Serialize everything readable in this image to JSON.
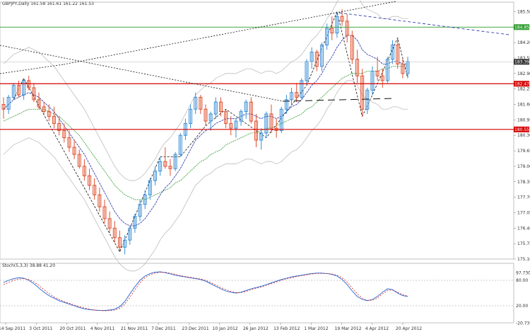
{
  "header": {
    "title": "GBPJPY,Daily 161.58 161.61 161.22 161.53",
    "indicator_title": "Stoch(5,3,3) 38.88 41.20"
  },
  "chart_data": [
    {
      "type": "candlestick",
      "title": "GBPJPY,Daily",
      "x_labels": [
        "14 Sep 2011",
        "3 Oct 2011",
        "20 Oct 2011",
        "4 Nov 2011",
        "21 Nov 2011",
        "7 Dec 2011",
        "23 Dec 2011",
        "10 Jan 2012",
        "26 Jan 2012",
        "13 Feb 2012",
        "1 Mar 2012",
        "19 Mar 2012",
        "4 Apr 2012",
        "20 Apr 2012"
      ],
      "price_ticks": [
        185.5,
        184.85,
        184.2,
        183.55,
        182.9,
        182.25,
        181.6,
        180.95,
        180.3,
        179.65,
        179.0,
        178.35,
        177.7,
        177.05,
        176.4,
        175.75,
        175.1
      ],
      "ylim": [
        175.1,
        185.9
      ],
      "price_tags": [
        {
          "label": "184.85",
          "value": 184.85,
          "color": "#2e9b2e"
        },
        {
          "label": "183.39",
          "value": 183.39,
          "color": "#333333"
        },
        {
          "label": "182.47",
          "value": 182.47,
          "color": "#d40000"
        },
        {
          "label": "180.55",
          "value": 180.55,
          "color": "#d40000"
        }
      ],
      "candles": [
        [
          181.6,
          181.9,
          181.0,
          181.4
        ],
        [
          181.4,
          182.0,
          181.2,
          181.9
        ],
        [
          181.9,
          182.5,
          181.8,
          182.4
        ],
        [
          182.4,
          182.6,
          181.9,
          182.0
        ],
        [
          182.0,
          182.7,
          181.8,
          182.6
        ],
        [
          182.6,
          182.8,
          182.2,
          182.3
        ],
        [
          182.3,
          182.5,
          181.7,
          181.8
        ],
        [
          181.8,
          182.1,
          181.4,
          181.5
        ],
        [
          181.5,
          181.7,
          181.2,
          181.3
        ],
        [
          181.3,
          181.6,
          180.9,
          181.1
        ],
        [
          181.1,
          181.5,
          180.6,
          180.8
        ],
        [
          180.8,
          181.1,
          180.3,
          180.5
        ],
        [
          180.5,
          180.8,
          180.0,
          180.2
        ],
        [
          180.2,
          180.5,
          179.6,
          179.8
        ],
        [
          179.8,
          180.1,
          179.3,
          179.5
        ],
        [
          179.5,
          179.7,
          178.9,
          179.0
        ],
        [
          179.0,
          179.3,
          178.4,
          178.6
        ],
        [
          178.6,
          178.9,
          178.0,
          178.2
        ],
        [
          178.2,
          178.5,
          177.6,
          177.8
        ],
        [
          177.8,
          178.1,
          177.1,
          177.3
        ],
        [
          177.3,
          177.6,
          176.6,
          176.8
        ],
        [
          176.8,
          177.1,
          176.2,
          176.4
        ],
        [
          176.4,
          176.7,
          175.8,
          176.0
        ],
        [
          176.0,
          176.3,
          175.4,
          175.6
        ],
        [
          175.6,
          176.1,
          175.3,
          175.9
        ],
        [
          175.9,
          176.5,
          175.7,
          176.4
        ],
        [
          176.4,
          177.0,
          176.2,
          176.9
        ],
        [
          176.9,
          177.6,
          176.7,
          177.4
        ],
        [
          177.4,
          178.0,
          177.2,
          177.8
        ],
        [
          177.8,
          178.5,
          177.6,
          178.4
        ],
        [
          178.4,
          179.0,
          178.2,
          178.8
        ],
        [
          178.8,
          179.4,
          178.6,
          179.2
        ],
        [
          179.2,
          179.8,
          178.9,
          179.0
        ],
        [
          179.0,
          179.3,
          178.6,
          178.9
        ],
        [
          178.9,
          179.6,
          178.8,
          179.5
        ],
        [
          179.5,
          180.4,
          179.4,
          180.3
        ],
        [
          180.3,
          181.0,
          180.1,
          180.8
        ],
        [
          180.8,
          181.6,
          180.6,
          181.4
        ],
        [
          181.4,
          182.1,
          181.2,
          181.9
        ],
        [
          181.9,
          182.0,
          181.2,
          181.4
        ],
        [
          181.4,
          181.6,
          180.7,
          180.9
        ],
        [
          180.9,
          181.3,
          180.5,
          181.2
        ],
        [
          181.2,
          181.9,
          181.0,
          181.7
        ],
        [
          181.7,
          181.9,
          181.1,
          181.3
        ],
        [
          181.3,
          181.4,
          180.6,
          180.8
        ],
        [
          180.8,
          181.1,
          180.3,
          180.6
        ],
        [
          180.6,
          181.0,
          180.2,
          180.9
        ],
        [
          180.9,
          181.4,
          180.7,
          181.3
        ],
        [
          181.3,
          181.8,
          181.0,
          181.7
        ],
        [
          181.7,
          181.9,
          180.8,
          180.9
        ],
        [
          180.9,
          181.2,
          179.8,
          180.1
        ],
        [
          180.1,
          180.6,
          179.7,
          180.4
        ],
        [
          180.4,
          181.3,
          180.2,
          181.2
        ],
        [
          181.2,
          181.6,
          180.4,
          180.6
        ],
        [
          180.6,
          181.0,
          180.2,
          180.5
        ],
        [
          180.5,
          181.5,
          180.4,
          181.4
        ],
        [
          181.4,
          182.0,
          181.2,
          181.8
        ],
        [
          181.8,
          182.3,
          181.6,
          182.1
        ],
        [
          182.1,
          182.5,
          181.7,
          181.9
        ],
        [
          181.9,
          182.7,
          181.8,
          182.6
        ],
        [
          182.6,
          183.5,
          182.4,
          183.4
        ],
        [
          183.4,
          184.0,
          183.1,
          183.8
        ],
        [
          183.8,
          183.9,
          183.0,
          183.2
        ],
        [
          183.2,
          184.2,
          183.0,
          184.1
        ],
        [
          184.1,
          185.0,
          183.9,
          184.8
        ],
        [
          184.8,
          185.3,
          184.3,
          184.6
        ],
        [
          184.6,
          185.5,
          184.4,
          185.3
        ],
        [
          185.3,
          185.6,
          184.9,
          185.1
        ],
        [
          185.1,
          185.4,
          184.2,
          184.5
        ],
        [
          184.5,
          184.7,
          183.3,
          183.5
        ],
        [
          183.5,
          183.9,
          182.5,
          182.8
        ],
        [
          182.8,
          183.1,
          181.1,
          181.4
        ],
        [
          181.4,
          182.3,
          181.2,
          182.2
        ],
        [
          182.2,
          183.2,
          182.0,
          183.0
        ],
        [
          183.0,
          183.6,
          182.6,
          182.8
        ],
        [
          182.8,
          183.1,
          182.3,
          182.6
        ],
        [
          182.6,
          183.6,
          182.5,
          183.5
        ],
        [
          183.5,
          184.3,
          183.3,
          184.1
        ],
        [
          184.1,
          184.4,
          183.1,
          183.3
        ],
        [
          183.3,
          183.5,
          182.7,
          182.9
        ],
        [
          182.9,
          183.6,
          182.7,
          183.4
        ]
      ],
      "ma_blue": [
        181.4,
        181.6,
        181.8,
        181.9,
        182.0,
        182.1,
        182.0,
        181.9,
        181.7,
        181.5,
        181.3,
        181.0,
        180.7,
        180.4,
        180.1,
        179.8,
        179.5,
        179.1,
        178.7,
        178.3,
        177.9,
        177.5,
        177.1,
        176.8,
        176.6,
        176.5,
        176.5,
        176.6,
        176.8,
        177.1,
        177.4,
        177.8,
        178.1,
        178.3,
        178.6,
        178.9,
        179.3,
        179.7,
        180.1,
        180.3,
        180.5,
        180.6,
        180.8,
        180.9,
        181.0,
        181.0,
        181.0,
        181.1,
        181.2,
        181.2,
        181.1,
        181.0,
        181.1,
        181.1,
        181.0,
        181.1,
        181.3,
        181.5,
        181.6,
        181.8,
        182.1,
        182.4,
        182.6,
        182.9,
        183.3,
        183.6,
        184.0,
        184.3,
        184.5,
        184.5,
        184.3,
        183.9,
        183.7,
        183.6,
        183.5,
        183.3,
        183.3,
        183.4,
        183.4,
        183.3,
        183.3
      ],
      "ma_green": [
        180.9,
        181.0,
        181.1,
        181.2,
        181.3,
        181.4,
        181.4,
        181.4,
        181.4,
        181.3,
        181.2,
        181.1,
        180.9,
        180.7,
        180.5,
        180.3,
        180.0,
        179.7,
        179.4,
        179.1,
        178.8,
        178.5,
        178.2,
        178.0,
        177.8,
        177.7,
        177.6,
        177.6,
        177.6,
        177.7,
        177.8,
        177.9,
        178.0,
        178.1,
        178.3,
        178.4,
        178.6,
        178.8,
        179.0,
        179.2,
        179.3,
        179.5,
        179.6,
        179.7,
        179.9,
        180.0,
        180.1,
        180.2,
        180.3,
        180.4,
        180.4,
        180.5,
        180.6,
        180.6,
        180.7,
        180.8,
        180.9,
        181.0,
        181.1,
        181.2,
        181.4,
        181.5,
        181.7,
        181.9,
        182.1,
        182.3,
        182.5,
        182.7,
        182.8,
        182.9,
        182.9,
        182.9,
        183.0,
        183.0,
        183.0,
        183.1,
        183.1,
        183.2,
        183.2,
        183.2,
        183.2
      ],
      "stoch_ylim": [
        -20,
        120
      ],
      "stoch_ticks": [
        {
          "label": "97.7306",
          "value": 97.7
        },
        {
          "label": "80.00",
          "value": 80
        },
        {
          "label": "20.00",
          "value": 20
        },
        {
          "label": "-20.7362",
          "value": -20.7
        }
      ],
      "stoch_main": [
        75,
        80,
        84,
        86,
        85,
        80,
        72,
        62,
        52,
        44,
        38,
        32,
        28,
        24,
        20,
        16,
        13,
        11,
        10,
        9,
        9,
        10,
        12,
        18,
        30,
        48,
        65,
        80,
        90,
        96,
        99,
        100,
        98,
        95,
        92,
        90,
        88,
        86,
        84,
        82,
        78,
        72,
        66,
        60,
        55,
        52,
        50,
        52,
        56,
        60,
        63,
        66,
        70,
        74,
        78,
        82,
        85,
        88,
        90,
        92,
        94,
        96,
        97,
        97,
        96,
        94,
        90,
        82,
        70,
        55,
        42,
        35,
        32,
        35,
        42,
        52,
        60,
        58,
        50,
        44,
        42
      ],
      "stoch_signal": [
        70,
        75,
        80,
        83,
        84,
        82,
        76,
        68,
        58,
        49,
        41,
        35,
        30,
        26,
        22,
        18,
        15,
        12,
        10,
        9,
        8,
        9,
        10,
        14,
        24,
        40,
        58,
        74,
        86,
        93,
        97,
        99,
        99,
        97,
        94,
        91,
        89,
        87,
        85,
        83,
        80,
        75,
        69,
        63,
        58,
        54,
        51,
        51,
        54,
        58,
        61,
        64,
        68,
        72,
        76,
        80,
        83,
        86,
        89,
        91,
        93,
        95,
        96,
        96,
        96,
        95,
        92,
        86,
        76,
        62,
        48,
        38,
        33,
        33,
        38,
        48,
        56,
        57,
        52,
        46,
        43
      ]
    }
  ]
}
